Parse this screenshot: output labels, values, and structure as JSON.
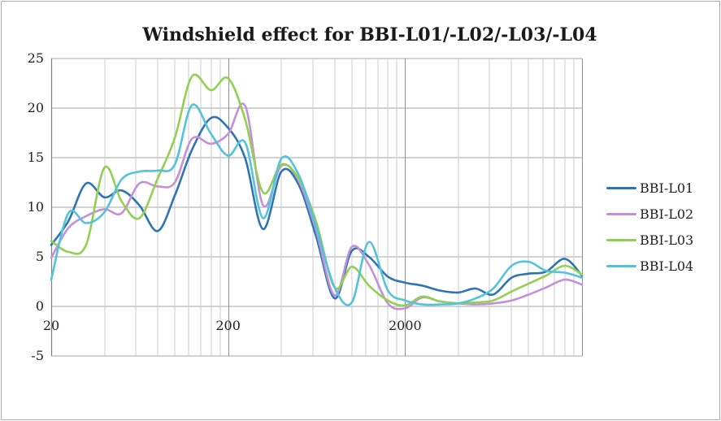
{
  "window": {
    "background": "#ffffff",
    "border_color": "#ababab"
  },
  "chart_data": {
    "type": "line",
    "title": "Windshield effect for BBI-L01/-L02/-L03/-L04",
    "legend_position": "right",
    "x_axis": {
      "scale": "log",
      "min": 20,
      "max": 20000,
      "tick_labels": [
        {
          "value": 20,
          "label": "20"
        },
        {
          "value": 200,
          "label": "200"
        },
        {
          "value": 2000,
          "label": "2000"
        }
      ],
      "decade_values": [
        20,
        200,
        2000,
        20000
      ],
      "minor_multiples": [
        2,
        3,
        4,
        5,
        6,
        7,
        8,
        9
      ]
    },
    "y_axis": {
      "min": -5,
      "max": 25,
      "tick_step": 5,
      "ticks": [
        {
          "value": 25,
          "label": "25"
        },
        {
          "value": 20,
          "label": "20"
        },
        {
          "value": 15,
          "label": "15"
        },
        {
          "value": 10,
          "label": "10"
        },
        {
          "value": 5,
          "label": "5"
        },
        {
          "value": 0,
          "label": "0"
        },
        {
          "value": -5,
          "label": "-5"
        }
      ]
    },
    "grid": {
      "minor_color": "#cbcbcb",
      "major_color": "#8f8f8f",
      "horizontal_color": "#a6a6a6",
      "axis_color": "#7f7f7f"
    },
    "x": [
      20,
      25,
      31.5,
      40,
      50,
      63,
      80,
      100,
      125,
      160,
      200,
      250,
      315,
      400,
      500,
      630,
      800,
      1000,
      1250,
      1600,
      2000,
      2500,
      3150,
      4000,
      5000,
      6300,
      8000,
      10000,
      12500,
      16000,
      20000
    ],
    "series": [
      {
        "name": "BBI-L01",
        "color": "#2E74B5",
        "values": [
          6.2,
          8.6,
          12.4,
          11.0,
          11.7,
          10.2,
          7.6,
          11.2,
          15.8,
          19.0,
          18.0,
          14.9,
          7.8,
          13.6,
          12.3,
          7.0,
          0.8,
          5.6,
          5.0,
          3.0,
          2.4,
          2.1,
          1.6,
          1.4,
          1.8,
          1.2,
          2.9,
          3.3,
          3.5,
          4.8,
          3.1
        ]
      },
      {
        "name": "BBI-L02",
        "color": "#C490D8",
        "values": [
          4.9,
          7.9,
          9.1,
          9.8,
          9.4,
          12.4,
          12.1,
          12.5,
          16.9,
          16.4,
          17.4,
          20.2,
          10.2,
          14.2,
          12.7,
          7.6,
          1.1,
          6.0,
          4.2,
          0.3,
          -0.2,
          0.9,
          0.5,
          0.3,
          0.2,
          0.3,
          0.6,
          1.2,
          1.9,
          2.7,
          2.2
        ]
      },
      {
        "name": "BBI-L03",
        "color": "#92D050",
        "values": [
          6.6,
          5.5,
          6.2,
          14.0,
          10.6,
          8.9,
          12.9,
          17.0,
          23.2,
          21.8,
          23.0,
          18.8,
          11.5,
          14.3,
          12.9,
          8.5,
          1.9,
          4.0,
          2.1,
          0.6,
          0.1,
          1.0,
          0.5,
          0.3,
          0.4,
          0.6,
          1.5,
          2.3,
          3.1,
          4.1,
          3.2
        ]
      },
      {
        "name": "BBI-L04",
        "color": "#53C3DB",
        "values": [
          2.7,
          9.4,
          8.4,
          9.5,
          12.8,
          13.6,
          13.7,
          14.3,
          20.3,
          17.4,
          15.2,
          16.5,
          8.9,
          14.9,
          13.3,
          8.0,
          1.9,
          0.4,
          6.5,
          1.6,
          0.6,
          0.2,
          0.2,
          0.3,
          0.8,
          1.8,
          4.1,
          4.5,
          3.6,
          3.4,
          2.9
        ]
      }
    ]
  }
}
